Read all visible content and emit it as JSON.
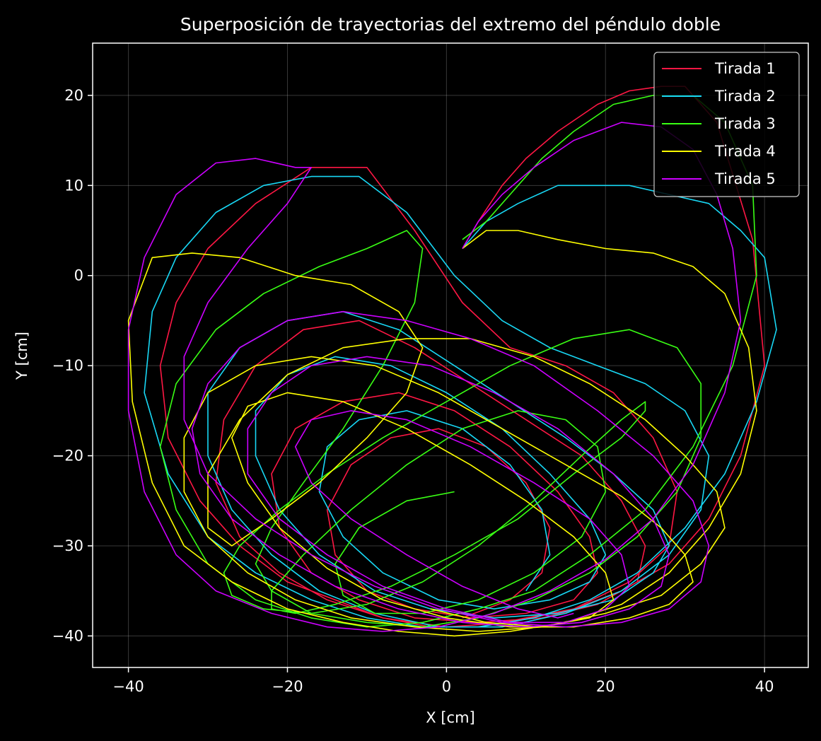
{
  "chart_data": {
    "type": "line",
    "title": "Superposición de trayectorias del extremo del péndulo doble",
    "xlabel": "X [cm]",
    "ylabel": "Y [cm]",
    "xlim": [
      -44.5,
      45.5
    ],
    "ylim": [
      -43.5,
      25.8
    ],
    "xticks": [
      -40,
      -20,
      0,
      20,
      40
    ],
    "yticks": [
      -40,
      -30,
      -20,
      -10,
      0,
      10,
      20
    ],
    "xtick_labels": [
      "−40",
      "−20",
      "0",
      "20",
      "40"
    ],
    "ytick_labels": [
      "−40",
      "−30",
      "−20",
      "−10",
      "0",
      "10",
      "20"
    ],
    "grid": true,
    "legend_position": "top-right",
    "background": "#000000",
    "series": [
      {
        "name": "Tirada 1",
        "color": "#ff1744",
        "x": [
          2,
          4,
          7,
          10,
          14,
          19,
          23,
          27,
          30,
          34,
          38.5,
          40,
          37,
          33,
          28,
          22,
          16,
          10,
          4,
          -2,
          -8,
          -14,
          -20,
          -26,
          -31,
          -35,
          -36,
          -34,
          -30,
          -24,
          -17,
          -10,
          -4,
          2,
          8,
          15,
          21,
          26,
          29,
          28,
          23,
          16,
          8,
          0,
          -8,
          -15,
          -21,
          -26,
          -29,
          -28,
          -24,
          -18,
          -11,
          -4,
          3,
          10,
          17,
          22,
          25,
          24,
          19,
          12,
          4,
          -4,
          -11,
          -17,
          -21,
          -22,
          -19,
          -13,
          -6,
          1,
          8,
          14,
          18,
          19,
          16,
          10,
          3,
          -4,
          -10,
          -14,
          -15,
          -12,
          -7,
          -1,
          5,
          10,
          13,
          12,
          8,
          2
        ],
        "y": [
          3,
          6,
          10,
          13,
          16,
          19,
          20.5,
          21,
          21,
          17,
          4,
          -10,
          -20,
          -27,
          -32,
          -35,
          -37,
          -38,
          -39,
          -39,
          -38,
          -36,
          -34,
          -30,
          -25,
          -18,
          -10,
          -3,
          3,
          8,
          12,
          12,
          5,
          -3,
          -8,
          -10,
          -13,
          -18,
          -24,
          -30,
          -34,
          -37,
          -38.5,
          -39,
          -38,
          -36,
          -33,
          -29,
          -23,
          -16,
          -10,
          -6,
          -5,
          -8,
          -12,
          -16,
          -20,
          -25,
          -30,
          -34,
          -36.5,
          -38,
          -38.5,
          -38,
          -36,
          -33,
          -28,
          -22,
          -17,
          -14,
          -13,
          -15,
          -19,
          -24,
          -29,
          -33,
          -36,
          -37.5,
          -38,
          -37,
          -35,
          -31,
          -26,
          -21,
          -18,
          -17,
          -19,
          -23,
          -28,
          -33,
          -36,
          -38
        ]
      },
      {
        "name": "Tirada 2",
        "color": "#18d8f5",
        "x": [
          2,
          5,
          9,
          14,
          19,
          23,
          28,
          33,
          37,
          40,
          41.5,
          39,
          35,
          30,
          24,
          18,
          11,
          4,
          -3,
          -10,
          -17,
          -24,
          -30,
          -35,
          -38,
          -37,
          -34,
          -29,
          -23,
          -17,
          -11,
          -5,
          1,
          7,
          13,
          19,
          25,
          30,
          33,
          32,
          28,
          22,
          15,
          7,
          -1,
          -9,
          -16,
          -22,
          -27,
          -30,
          -30,
          -26,
          -20,
          -13,
          -6,
          1,
          8,
          15,
          21,
          26,
          28,
          26,
          21,
          14,
          6,
          -2,
          -9,
          -16,
          -21,
          -24,
          -24,
          -20,
          -14,
          -7,
          0,
          7,
          13,
          18,
          20,
          18,
          13,
          6,
          -1,
          -8,
          -13,
          -16,
          -15,
          -11,
          -5,
          2,
          8,
          12,
          13,
          10
        ],
        "y": [
          3,
          6,
          8,
          10,
          10,
          10,
          9,
          8,
          5,
          2,
          -6,
          -14,
          -22,
          -28,
          -33,
          -36,
          -38,
          -39,
          -39,
          -38,
          -36,
          -33,
          -29,
          -22,
          -13,
          -4,
          2,
          7,
          10,
          11,
          11,
          7,
          0,
          -5,
          -8,
          -10,
          -12,
          -15,
          -20,
          -26,
          -31,
          -35,
          -37.5,
          -39,
          -39,
          -37.5,
          -35,
          -31,
          -26,
          -20,
          -13,
          -8,
          -5,
          -4,
          -6,
          -10,
          -14,
          -18,
          -22,
          -26,
          -30,
          -33,
          -36,
          -37.5,
          -38,
          -37,
          -35,
          -31,
          -26,
          -20,
          -15,
          -11,
          -9,
          -10,
          -13,
          -17,
          -22,
          -27,
          -31,
          -34,
          -36,
          -37,
          -36,
          -33,
          -29,
          -24,
          -19,
          -16,
          -15,
          -17,
          -21,
          -26,
          -31,
          -35
        ]
      },
      {
        "name": "Tirada 3",
        "color": "#39ff14",
        "x": [
          2,
          5,
          8,
          12,
          16,
          21,
          26,
          31,
          35,
          38.5,
          39,
          36,
          31,
          25,
          18,
          11,
          4,
          -3,
          -10,
          -17,
          -24,
          -30,
          -34,
          -36,
          -34,
          -29,
          -23,
          -16,
          -10,
          -5,
          -3,
          -4,
          -8,
          -13,
          -18,
          -22,
          -24,
          -22,
          -17,
          -10,
          -3,
          4,
          11,
          18,
          24,
          29,
          32,
          32,
          29,
          23,
          16,
          8,
          0,
          -8,
          -15,
          -21,
          -26,
          -28,
          -27,
          -23,
          -17,
          -10,
          -3,
          4,
          11,
          17,
          22,
          25,
          25,
          22,
          16,
          9,
          1,
          -7,
          -14,
          -19,
          -22,
          -22,
          -18,
          -12,
          -5,
          2,
          9,
          15,
          19,
          20,
          17,
          11,
          4,
          -3,
          -9,
          -13,
          -14,
          -11,
          -5,
          1
        ],
        "y": [
          4,
          6,
          9,
          13,
          16,
          19,
          20,
          20,
          17,
          10,
          0,
          -10,
          -19,
          -26,
          -31,
          -35,
          -37,
          -38.5,
          -39,
          -38,
          -36,
          -32,
          -26,
          -19,
          -12,
          -6,
          -2,
          1,
          3,
          5,
          3,
          -3,
          -10,
          -17,
          -23,
          -28,
          -32,
          -35,
          -37.5,
          -38.5,
          -39,
          -38,
          -36,
          -33,
          -29,
          -24,
          -18,
          -12,
          -8,
          -6,
          -7,
          -10,
          -14,
          -18,
          -22,
          -26,
          -30,
          -33,
          -35.5,
          -37,
          -37.5,
          -36.5,
          -34,
          -30,
          -25,
          -20,
          -16,
          -14,
          -15,
          -18,
          -22,
          -27,
          -31,
          -34.5,
          -36.5,
          -37.5,
          -37,
          -35,
          -31,
          -26,
          -21,
          -17,
          -15,
          -16,
          -19,
          -24,
          -29,
          -33,
          -36,
          -37.5,
          -37.5,
          -35.5,
          -32,
          -28,
          -25,
          -24
        ]
      },
      {
        "name": "Tirada 4",
        "color": "#ffff00",
        "x": [
          2,
          5,
          9,
          14,
          20,
          26,
          31,
          35,
          38,
          39,
          37,
          33,
          28,
          22,
          15,
          8,
          1,
          -6,
          -13,
          -20,
          -27,
          -33,
          -37,
          -39.5,
          -40,
          -37,
          -32,
          -26,
          -19,
          -12,
          -6,
          -3,
          -5,
          -10,
          -16,
          -22,
          -27,
          -30,
          -30,
          -26,
          -20,
          -13,
          -5,
          3,
          11,
          18,
          25,
          30,
          34,
          35,
          32,
          27,
          20,
          12,
          4,
          -4,
          -12,
          -19,
          -25,
          -30,
          -33,
          -33,
          -30,
          -24,
          -17,
          -9,
          -1,
          7,
          15,
          22,
          27,
          30,
          31,
          28,
          23,
          16,
          8,
          0,
          -8,
          -15,
          -21,
          -25,
          -27,
          -25,
          -20,
          -13,
          -5,
          3,
          10,
          16,
          20,
          21,
          18,
          12,
          5,
          -2
        ],
        "y": [
          3,
          5,
          5,
          4,
          3,
          2.5,
          1,
          -2,
          -8,
          -15,
          -22,
          -28,
          -33,
          -36.5,
          -38.5,
          -39.5,
          -40,
          -39.5,
          -38.5,
          -37,
          -34,
          -30,
          -23,
          -14,
          -5,
          2,
          2.5,
          2,
          0,
          -1,
          -4,
          -8,
          -13,
          -18,
          -23,
          -27,
          -30,
          -28,
          -22,
          -16,
          -11,
          -8,
          -7,
          -7,
          -9,
          -12,
          -16,
          -20,
          -24,
          -28,
          -32,
          -35.5,
          -37.5,
          -39,
          -39.5,
          -39,
          -38,
          -36,
          -33,
          -29,
          -24,
          -18,
          -13,
          -10,
          -9,
          -10,
          -13,
          -17,
          -21,
          -24.5,
          -28,
          -31,
          -34,
          -36.5,
          -38,
          -39,
          -39,
          -38,
          -36,
          -32.5,
          -28,
          -23,
          -18,
          -14.5,
          -13,
          -14,
          -17,
          -21,
          -25,
          -29,
          -33,
          -36,
          -38,
          -39,
          -38.5,
          -37
        ]
      },
      {
        "name": "Tirada 5",
        "color": "#cc00ff",
        "x": [
          2,
          4,
          7,
          11,
          16,
          22,
          27,
          31,
          34,
          36,
          37,
          35,
          31,
          26,
          20,
          13,
          6,
          -1,
          -8,
          -15,
          -22,
          -29,
          -34,
          -38,
          -40,
          -40,
          -38,
          -34,
          -29,
          -24,
          -19,
          -17,
          -20,
          -25,
          -30,
          -33,
          -33,
          -30,
          -24,
          -17,
          -9,
          -1,
          7,
          15,
          22,
          28,
          32,
          33,
          31,
          26,
          19,
          11,
          3,
          -5,
          -13,
          -20,
          -26,
          -30,
          -32,
          -31,
          -27,
          -21,
          -14,
          -6,
          2,
          10,
          17,
          23,
          27,
          28,
          26,
          21,
          14,
          6,
          -2,
          -10,
          -17,
          -22,
          -25,
          -25,
          -21,
          -15,
          -8,
          0,
          8,
          15,
          20,
          23,
          22,
          18,
          11,
          3,
          -5,
          -12,
          -17,
          -19,
          -17,
          -12,
          -5,
          2,
          9,
          14,
          16
        ],
        "y": [
          3,
          6,
          9,
          12,
          15,
          17,
          16.5,
          14,
          9,
          3,
          -5,
          -13,
          -21,
          -27,
          -31.5,
          -35,
          -37.5,
          -39,
          -39.5,
          -39,
          -37.5,
          -35,
          -31,
          -24,
          -15,
          -6,
          2,
          9,
          12.5,
          13,
          12,
          12,
          8,
          3,
          -3,
          -9,
          -16,
          -22,
          -27,
          -31,
          -34.5,
          -37,
          -38.5,
          -39,
          -38.5,
          -37,
          -34,
          -30,
          -25,
          -20,
          -15,
          -10,
          -7,
          -5,
          -4,
          -5,
          -8,
          -12,
          -17,
          -22,
          -27,
          -31,
          -34.5,
          -37,
          -38.5,
          -39,
          -38.5,
          -37,
          -34.5,
          -31,
          -27,
          -22,
          -17,
          -13,
          -10,
          -9,
          -10,
          -13,
          -17,
          -22,
          -27,
          -31,
          -34.5,
          -37,
          -38.5,
          -38.5,
          -37,
          -34.5,
          -31,
          -27,
          -23,
          -19,
          -16,
          -15,
          -16,
          -19,
          -23,
          -27,
          -31,
          -34.5,
          -37,
          -38,
          -37.5
        ]
      }
    ]
  }
}
